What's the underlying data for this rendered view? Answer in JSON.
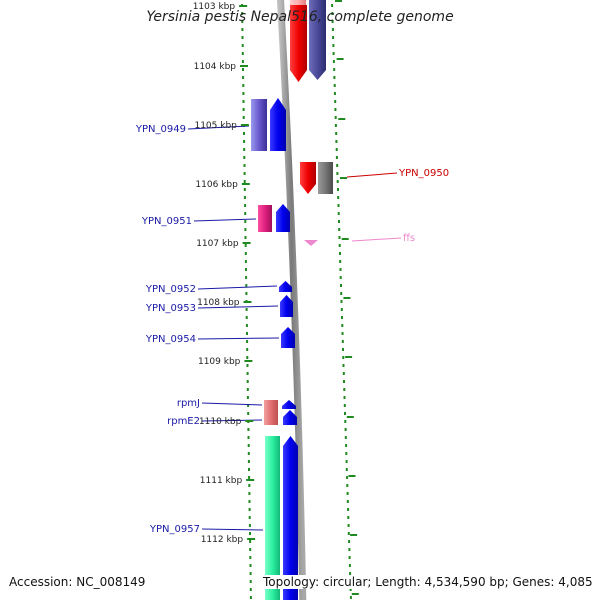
{
  "title": "Yersinia pestis Nepal516, complete genome",
  "footer": {
    "accession": "Accession: NC_008149",
    "info": "Topology: circular; Length: 4,534,590 bp; Genes: 4,085"
  },
  "ticks": [
    {
      "label": "1103 kbp"
    },
    {
      "label": "1104 kbp"
    },
    {
      "label": "1105 kbp"
    },
    {
      "label": "1106 kbp"
    },
    {
      "label": "1107 kbp"
    },
    {
      "label": "1108 kbp"
    },
    {
      "label": "1109 kbp"
    },
    {
      "label": "1110 kbp"
    },
    {
      "label": "1111 kbp"
    },
    {
      "label": "1112 kbp"
    }
  ],
  "gene_labels": [
    {
      "name": "YPN_0949",
      "color": "#1a1aa6"
    },
    {
      "name": "YPN_0950",
      "color": "#cc0000"
    },
    {
      "name": "YPN_0951",
      "color": "#1a1aa6"
    },
    {
      "name": "ffs",
      "color": "#ee88cc"
    },
    {
      "name": "YPN_0952",
      "color": "#1a1aa6"
    },
    {
      "name": "YPN_0953",
      "color": "#1a1aa6"
    },
    {
      "name": "YPN_0954",
      "color": "#1a1aa6"
    },
    {
      "name": "rpmJ",
      "color": "#1a1aa6"
    },
    {
      "name": "rpmE2",
      "color": "#1a1aa6"
    },
    {
      "name": "YPN_0957",
      "color": "#1a1aa6"
    }
  ],
  "colors": {
    "tick": "#1f8a1f",
    "backbone": "#8c8c8c",
    "forward_cds": "#0000ee",
    "reverse_cds": "#ee0000",
    "rna": "#ee88cc"
  }
}
